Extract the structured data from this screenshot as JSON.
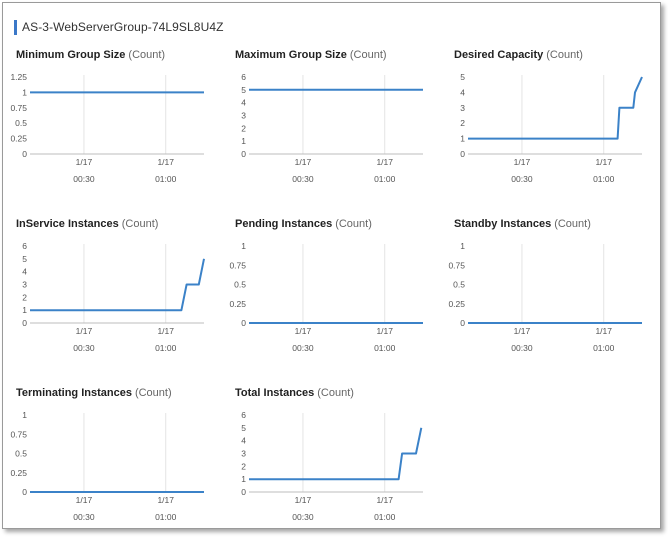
{
  "group": {
    "title": "AS-3-WebServerGroup-74L9SL8U4Z",
    "accent": "#3b78c8"
  },
  "series_color": "#3b82c8",
  "panels": [
    {
      "id": "min-group-size",
      "title": "Minimum Group Size",
      "unit": "(Count)",
      "x_ticks": [
        {
          "date": "1/17",
          "time": "00:30"
        },
        {
          "date": "1/17",
          "time": "01:00"
        }
      ],
      "chart_data": {
        "type": "line",
        "title": "Minimum Group Size (Count)",
        "y_ticks": [
          "1.25",
          "1",
          "0.75",
          "0.5",
          "0.25",
          "0"
        ],
        "ylim": [
          0,
          1.25
        ],
        "x": [
          0,
          1
        ],
        "y": [
          1,
          1
        ]
      }
    },
    {
      "id": "max-group-size",
      "title": "Maximum Group Size",
      "unit": "(Count)",
      "x_ticks": [
        {
          "date": "1/17",
          "time": "00:30"
        },
        {
          "date": "1/17",
          "time": "01:00"
        }
      ],
      "chart_data": {
        "type": "line",
        "title": "Maximum Group Size (Count)",
        "y_ticks": [
          "6",
          "5",
          "4",
          "3",
          "2",
          "1",
          "0"
        ],
        "ylim": [
          0,
          6
        ],
        "x": [
          0,
          1
        ],
        "y": [
          5,
          5
        ]
      }
    },
    {
      "id": "desired-capacity",
      "title": "Desired Capacity",
      "unit": "(Count)",
      "x_ticks": [
        {
          "date": "1/17",
          "time": "00:30"
        },
        {
          "date": "1/17",
          "time": "01:00"
        }
      ],
      "chart_data": {
        "type": "line",
        "title": "Desired Capacity (Count)",
        "y_ticks": [
          "5",
          "4",
          "3",
          "2",
          "1",
          "0"
        ],
        "ylim": [
          0,
          5
        ],
        "x": [
          0,
          0.86,
          0.87,
          0.95,
          0.96,
          1
        ],
        "y": [
          1,
          1,
          3,
          3,
          4,
          5
        ]
      }
    },
    {
      "id": "in-service-instances",
      "title": "InService Instances",
      "unit": "(Count)",
      "x_ticks": [
        {
          "date": "1/17",
          "time": "00:30"
        },
        {
          "date": "1/17",
          "time": "01:00"
        }
      ],
      "chart_data": {
        "type": "line",
        "title": "InService Instances (Count)",
        "y_ticks": [
          "6",
          "5",
          "4",
          "3",
          "2",
          "1",
          "0"
        ],
        "ylim": [
          0,
          6
        ],
        "x": [
          0,
          0.87,
          0.9,
          0.97,
          1
        ],
        "y": [
          1,
          1,
          3,
          3,
          5
        ]
      }
    },
    {
      "id": "pending-instances",
      "title": "Pending Instances",
      "unit": "(Count)",
      "x_ticks": [
        {
          "date": "1/17",
          "time": "00:30"
        },
        {
          "date": "1/17",
          "time": "01:00"
        }
      ],
      "chart_data": {
        "type": "line",
        "title": "Pending Instances (Count)",
        "y_ticks": [
          "1",
          "0.75",
          "0.5",
          "0.25",
          "0"
        ],
        "ylim": [
          0,
          1
        ],
        "x": [
          0,
          1
        ],
        "y": [
          0,
          0
        ]
      }
    },
    {
      "id": "standby-instances",
      "title": "Standby Instances",
      "unit": "(Count)",
      "x_ticks": [
        {
          "date": "1/17",
          "time": "00:30"
        },
        {
          "date": "1/17",
          "time": "01:00"
        }
      ],
      "chart_data": {
        "type": "line",
        "title": "Standby Instances (Count)",
        "y_ticks": [
          "1",
          "0.75",
          "0.5",
          "0.25",
          "0"
        ],
        "ylim": [
          0,
          1
        ],
        "x": [
          0,
          1
        ],
        "y": [
          0,
          0
        ]
      }
    },
    {
      "id": "terminating-instances",
      "title": "Terminating Instances",
      "unit": "(Count)",
      "x_ticks": [
        {
          "date": "1/17",
          "time": "00:30"
        },
        {
          "date": "1/17",
          "time": "01:00"
        }
      ],
      "chart_data": {
        "type": "line",
        "title": "Terminating Instances (Count)",
        "y_ticks": [
          "1",
          "0.75",
          "0.5",
          "0.25",
          "0"
        ],
        "ylim": [
          0,
          1
        ],
        "x": [
          0,
          1
        ],
        "y": [
          0,
          0
        ]
      }
    },
    {
      "id": "total-instances",
      "title": "Total Instances",
      "unit": "(Count)",
      "x_ticks": [
        {
          "date": "1/17",
          "time": "00:30"
        },
        {
          "date": "1/17",
          "time": "01:00"
        }
      ],
      "chart_data": {
        "type": "line",
        "title": "Total Instances (Count)",
        "y_ticks": [
          "6",
          "5",
          "4",
          "3",
          "2",
          "1",
          "0"
        ],
        "ylim": [
          0,
          6
        ],
        "x": [
          0,
          0.86,
          0.88,
          0.96,
          0.99
        ],
        "y": [
          1,
          1,
          3,
          3,
          5
        ]
      }
    }
  ]
}
